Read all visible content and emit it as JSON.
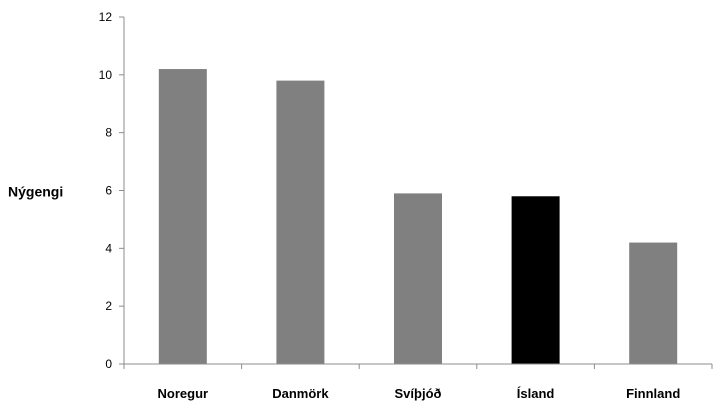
{
  "chart_data": {
    "type": "bar",
    "categories": [
      "Noregur",
      "Danmörk",
      "Svíþjóð",
      "Ísland",
      "Finnland"
    ],
    "values": [
      10.2,
      9.8,
      5.9,
      5.8,
      4.2
    ],
    "ylabel": "Nýgengi",
    "xlabel": "",
    "ylim": [
      0,
      12
    ],
    "yticks": [
      0,
      2,
      4,
      6,
      8,
      10,
      12
    ],
    "grid": false,
    "legend": "none",
    "colors": {
      "default_bar": "#808080",
      "highlight_bar": "#000000",
      "axis": "#8c8c8c",
      "text": "#000000"
    },
    "highlight_category": "Ísland"
  }
}
